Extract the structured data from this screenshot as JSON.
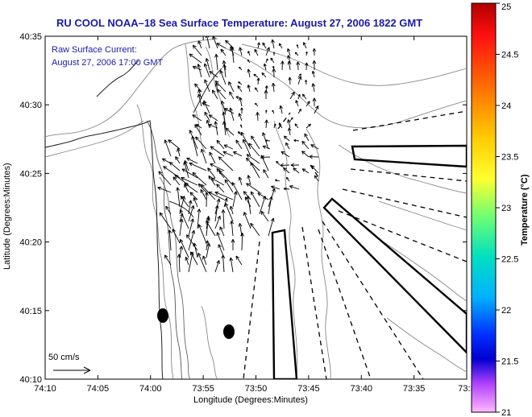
{
  "figure": {
    "title": "RU COOL  NOAA–18  Sea Surface Temperature:  August 27, 2006 1822 GMT",
    "current_label": "Raw Surface Current:",
    "current_time": "August 27, 2006 17:00 GMT",
    "scale_label": "50 cm/s"
  },
  "axes": {
    "xlabel": "Longitude (Degrees:Minutes)",
    "ylabel": "Latitude (Degrees:Minutes)",
    "x_ticks": [
      "74:10",
      "74:05",
      "74:00",
      "73:55",
      "73:50",
      "73:45",
      "73:40",
      "73:35",
      "73:3"
    ],
    "y_ticks": [
      "40:35",
      "40:30",
      "40:25",
      "40:20",
      "40:15",
      "40:10"
    ]
  },
  "colorbar": {
    "title": "Temperature (°C)",
    "ticks": [
      "25",
      "24.5",
      "24",
      "23.5",
      "23",
      "22.5",
      "22",
      "21.5",
      "21"
    ],
    "colors": [
      "#c00000",
      "#ff2020",
      "#ff8000",
      "#ffd000",
      "#ffff40",
      "#80ff60",
      "#00e0a0",
      "#00d0ff",
      "#0060ff",
      "#0000e0",
      "#a040ff",
      "#ff60ff",
      "#ffb0ff"
    ]
  },
  "map": {
    "markers": [
      {
        "name": "buoy-left",
        "lon": -73.98,
        "lat": 40.245
      },
      {
        "name": "buoy-right",
        "lon": -73.87,
        "lat": 40.225
      }
    ]
  }
}
